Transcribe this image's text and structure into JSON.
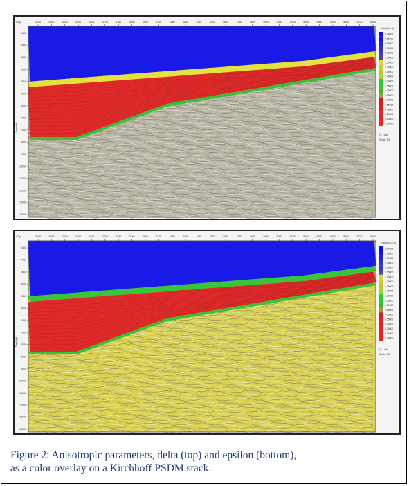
{
  "figure": {
    "caption_line1": "Figure 2: Anisotropic parameters, delta (top) and epsilon (bottom),",
    "caption_line2": "as a color overlay on a Kirchhoff PSDM stack."
  },
  "panels": [
    {
      "id": "delta",
      "corner_label": "CDp",
      "y_axis_label": "Depth(ft)",
      "cdp_ticks": [
        "3200",
        "3260",
        "3340",
        "3400",
        "3460",
        "3700",
        "3780",
        "3840",
        "3940",
        "4100",
        "4180",
        "4260",
        "4420",
        "4500",
        "4600",
        "4760",
        "4840",
        "4920",
        "5000",
        "5140",
        "5200",
        "5300",
        "5400",
        "5600",
        "5700",
        "5800"
      ],
      "depth_ticks": [
        "3400",
        "3400",
        "3600",
        "4000",
        "4500",
        "5000",
        "6000",
        "7000",
        "7000",
        "8000",
        "9000",
        "10000",
        "11000",
        "12000",
        "12000",
        "13000"
      ],
      "legend_title": "Delta(x1e-3)",
      "legend_values": [
        "3.00000",
        "2.65000",
        "2.50000",
        "2.35000",
        "2.20000",
        "2.05000",
        "1.90000",
        "1.75000",
        "1.60000",
        "1.45000",
        "1.30000",
        "1.15000",
        "1.00000",
        "0.85000",
        "0.70000",
        "0.55000",
        "0.40000",
        "0.25000",
        "0.10000",
        "0.00000"
      ],
      "legend_colors": [
        "#0b0bff",
        "#1212f0",
        "#2020dd",
        "#2e2ecc",
        "#3b3bb8",
        "#4848a8",
        "#d8d83a",
        "#cccc2e",
        "#c3c32a",
        "#a4d23a",
        "#22d222",
        "#36c436",
        "#4aae2e",
        "#8fa03a",
        "#d21e1e",
        "#d82020",
        "#e01d1d",
        "#e82222",
        "#ef1f1f",
        "#ff1a1a"
      ],
      "legend_checkbox": "Lock",
      "legend_scale": "Scale: 1/3",
      "overlay": {
        "water": "#1a1ae6",
        "band1": "#e5e23d",
        "band2": "#e02a2a",
        "band3": "#36c436",
        "background": "#b9b6a5"
      }
    },
    {
      "id": "epsilon",
      "corner_label": "CDp",
      "y_axis_label": "Depth(ft)",
      "cdp_ticks": [
        "3200",
        "3260",
        "3340",
        "3400",
        "3460",
        "3700",
        "3780",
        "3840",
        "3940",
        "4100",
        "4180",
        "4260",
        "4420",
        "4500",
        "4600",
        "4760",
        "4840",
        "4920",
        "5000",
        "5140",
        "5200",
        "5300",
        "5400",
        "5600",
        "5700",
        "5800"
      ],
      "depth_ticks": [
        "3400",
        "3400",
        "3600",
        "4000",
        "4500",
        "5000",
        "6000",
        "7000",
        "7000",
        "8000",
        "9000",
        "10000",
        "11000",
        "12000",
        "12000",
        "13000"
      ],
      "legend_title": "Epsilon(x1e-3)",
      "legend_values": [
        "3.00000",
        "2.65000",
        "2.50000",
        "2.35000",
        "2.20000",
        "2.05000",
        "1.90000",
        "1.75000",
        "1.60000",
        "1.45000",
        "1.30000",
        "1.15000",
        "1.00000",
        "0.85000",
        "0.70000",
        "0.55000",
        "0.40000",
        "0.25000",
        "0.10000",
        "0.00000"
      ],
      "legend_colors": [
        "#0b0bff",
        "#1212f0",
        "#2020dd",
        "#2e2ecc",
        "#3b3bb8",
        "#4848a8",
        "#d8d83a",
        "#cccc2e",
        "#c3c32a",
        "#a4d23a",
        "#22d222",
        "#36c436",
        "#4aae2e",
        "#8fa03a",
        "#d21e1e",
        "#d82020",
        "#e01d1d",
        "#e82222",
        "#ef1f1f",
        "#ff1a1a"
      ],
      "legend_checkbox": "Lock",
      "legend_scale": "Scale: 1/3",
      "overlay": {
        "water": "#1a1ae6",
        "band1": "#37c637",
        "band2": "#e02a2a",
        "band3": "#36c436",
        "background": "#d9d050"
      }
    }
  ]
}
